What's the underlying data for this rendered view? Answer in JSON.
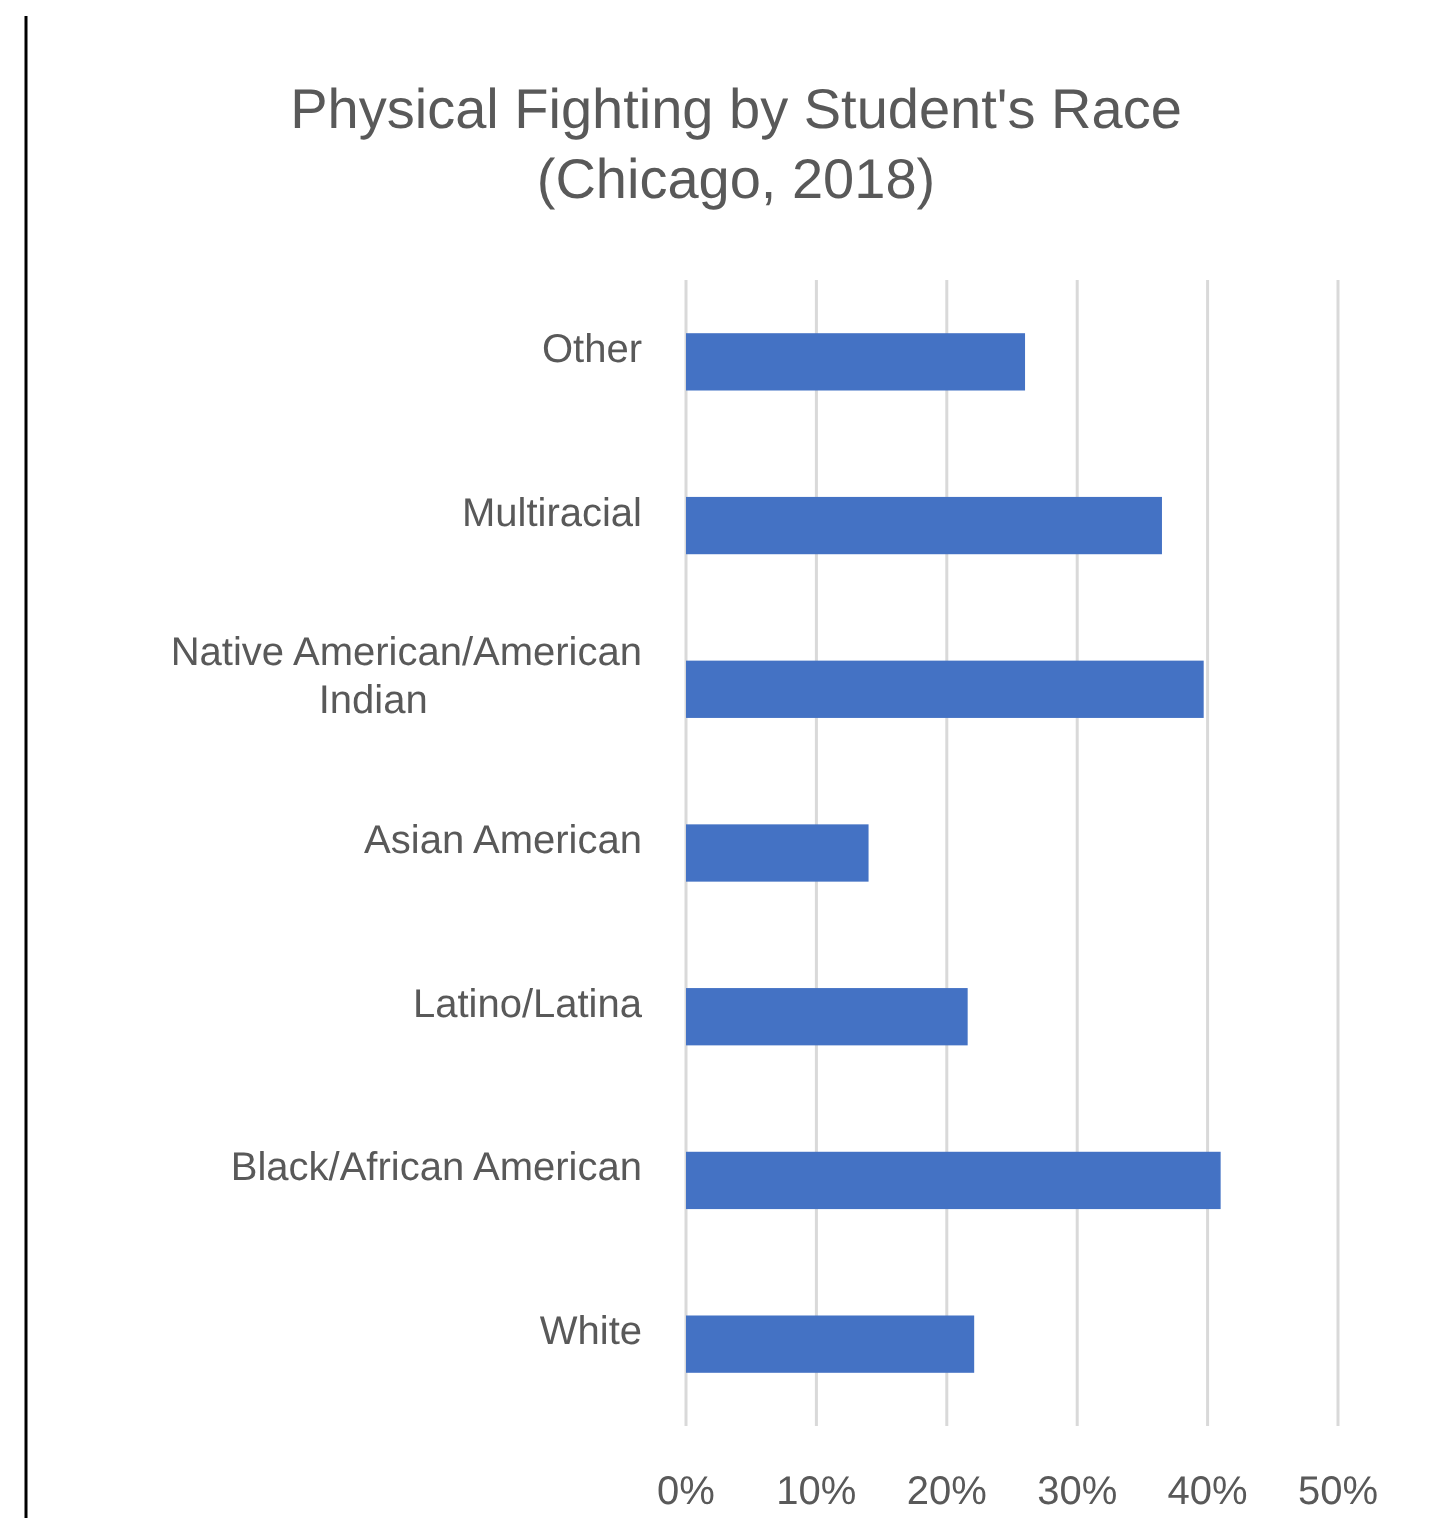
{
  "chart_data": {
    "type": "bar",
    "orientation": "horizontal",
    "title": "Physical Fighting by Student's Race\n(Chicago, 2018)",
    "categories": [
      "Other",
      "Multiracial",
      "Native American/American Indian",
      "Asian American",
      "Latino/Latina",
      "Black/African American",
      "White"
    ],
    "values": [
      26,
      36.5,
      39.7,
      14,
      21.6,
      41,
      22.1
    ],
    "color": "#4472c4",
    "xlim": [
      0,
      50
    ],
    "xticks": [
      {
        "value": 0,
        "label": "0%"
      },
      {
        "value": 10,
        "label": "10%"
      },
      {
        "value": 20,
        "label": "20%"
      },
      {
        "value": 30,
        "label": "30%"
      },
      {
        "value": 40,
        "label": "40%"
      },
      {
        "value": 50,
        "label": "50%"
      }
    ],
    "grid": "x"
  }
}
